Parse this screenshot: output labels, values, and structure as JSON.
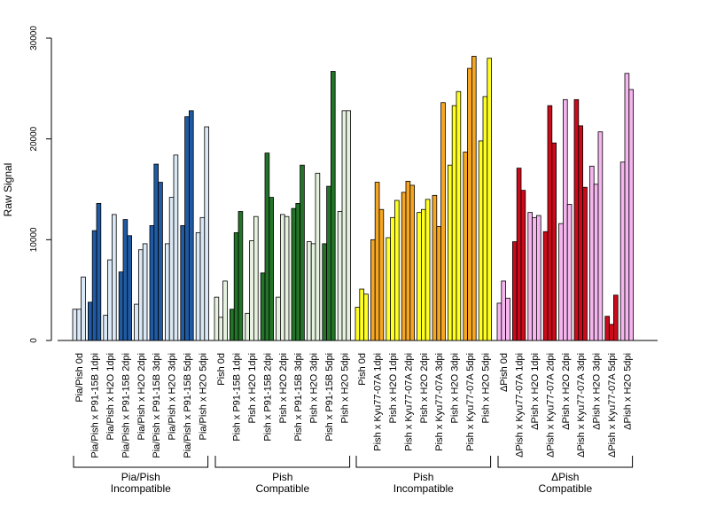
{
  "chart_data": {
    "type": "bar",
    "ylabel": "Raw Signal",
    "xlabel": "",
    "ylim": [
      0,
      30000
    ],
    "yticks": [
      0,
      10000,
      20000,
      30000
    ],
    "grid": false,
    "legend": "none",
    "categories": [
      {
        "label": "Pia/Pish 0d",
        "values": [
          3100,
          3100,
          6300
        ],
        "color": "#dbe8f5"
      },
      {
        "label": "Pia/Pish x P91-15B 1dpi",
        "values": [
          3800,
          10900,
          13600
        ],
        "color": "#1f5aa3"
      },
      {
        "label": "Pia/Pish x H2O 1dpi",
        "values": [
          2500,
          8000,
          12500
        ],
        "color": "#dbe8f5"
      },
      {
        "label": "Pia/Pish x P91-15B 2dpi",
        "values": [
          6800,
          12000,
          10400
        ],
        "color": "#1f5aa3"
      },
      {
        "label": "Pia/Pish x H2O 2dpi",
        "values": [
          3600,
          9000,
          9600
        ],
        "color": "#dbe8f5"
      },
      {
        "label": "Pia/Pish x P91-15B 3dpi",
        "values": [
          11400,
          17500,
          15700
        ],
        "color": "#1f5aa3"
      },
      {
        "label": "Pia/Pish x H2O 3dpi",
        "values": [
          9600,
          14200,
          18400
        ],
        "color": "#dbe8f5"
      },
      {
        "label": "Pia/Pish x P91-15B 5dpi",
        "values": [
          11400,
          22200,
          22800
        ],
        "color": "#1f5aa3"
      },
      {
        "label": "Pia/Pish x H2O 5dpi",
        "values": [
          10700,
          12200,
          21200
        ],
        "color": "#dbe8f5"
      },
      {
        "label": "Pish 0d",
        "values": [
          4300,
          2300,
          5900
        ],
        "color": "#e6f2df"
      },
      {
        "label": "Pish x P91-15B 1dpi",
        "values": [
          3100,
          10700,
          12800
        ],
        "color": "#237329"
      },
      {
        "label": "Pish x H2O 1dpi",
        "values": [
          2700,
          9900,
          12300
        ],
        "color": "#e6f2df"
      },
      {
        "label": "Pish x P91-15B 2dpi",
        "values": [
          6700,
          18600,
          14200
        ],
        "color": "#237329"
      },
      {
        "label": "Pish x H2O 2dpi",
        "values": [
          4300,
          12500,
          12300
        ],
        "color": "#e6f2df"
      },
      {
        "label": "Pish x P91-15B 3dpi",
        "values": [
          13100,
          13600,
          17400
        ],
        "color": "#237329"
      },
      {
        "label": "Pish x H2O 3dpi",
        "values": [
          9800,
          9600,
          16600
        ],
        "color": "#e6f2df"
      },
      {
        "label": "Pish x P91-15B 5dpi",
        "values": [
          9600,
          15300,
          26700
        ],
        "color": "#237329"
      },
      {
        "label": "Pish x H2O 5dpi",
        "values": [
          12800,
          22800,
          22800
        ],
        "color": "#e6f2df"
      },
      {
        "label": "Pish 0d",
        "values": [
          3300,
          5100,
          4600
        ],
        "color": "#ffff22"
      },
      {
        "label": "Pish x Kyu77-07A 1dpi",
        "values": [
          10000,
          15700,
          13000
        ],
        "color": "#f5a623"
      },
      {
        "label": "Pish x H2O 1dpi",
        "values": [
          10200,
          12200,
          13900
        ],
        "color": "#ffff22"
      },
      {
        "label": "Pish x Kyu77-07A 2dpi",
        "values": [
          14700,
          15800,
          15400
        ],
        "color": "#f5a623"
      },
      {
        "label": "Pish x H2O 2dpi",
        "values": [
          12700,
          13000,
          14000
        ],
        "color": "#ffff22"
      },
      {
        "label": "Pish x Kyu77-07A 3dpi",
        "values": [
          14400,
          11300,
          23600
        ],
        "color": "#f5a623"
      },
      {
        "label": "Pish x H2O 3dpi",
        "values": [
          17400,
          23300,
          24700
        ],
        "color": "#ffff22"
      },
      {
        "label": "Pish x Kyu77-07A 5dpi",
        "values": [
          18700,
          27000,
          28200
        ],
        "color": "#f5a623"
      },
      {
        "label": "Pish x H2O 5dpi",
        "values": [
          19800,
          24200,
          28000
        ],
        "color": "#ffff22"
      },
      {
        "label": "ΔPish 0d",
        "values": [
          3700,
          5900,
          4200
        ],
        "color": "#f5b5ee"
      },
      {
        "label": "ΔPish x Kyu77-07A 1dpi",
        "values": [
          9800,
          17100,
          14900
        ],
        "color": "#cc0a1a"
      },
      {
        "label": "ΔPish x H2O 1dpi",
        "values": [
          12700,
          12200,
          12400
        ],
        "color": "#f5b5ee"
      },
      {
        "label": "ΔPish x Kyu77-07A 2dpi",
        "values": [
          10800,
          23300,
          19600
        ],
        "color": "#cc0a1a"
      },
      {
        "label": "ΔPish x H2O 2dpi",
        "values": [
          11600,
          23900,
          13500
        ],
        "color": "#f5b5ee"
      },
      {
        "label": "ΔPish x Kyu77-07A 3dpi",
        "values": [
          23900,
          21300,
          15200
        ],
        "color": "#cc0a1a"
      },
      {
        "label": "ΔPish x H2O 3dpi",
        "values": [
          17300,
          15500,
          20700
        ],
        "color": "#f5b5ee"
      },
      {
        "label": "ΔPish x Kyu77-07A 5dpi",
        "values": [
          2400,
          1600,
          4500
        ],
        "color": "#cc0a1a"
      },
      {
        "label": "ΔPish x H2O 5dpi",
        "values": [
          17700,
          26500,
          24900
        ],
        "color": "#f5b5ee"
      }
    ],
    "groups": [
      {
        "line1": "Pia/Pish",
        "line2": "Incompatible",
        "count": 9
      },
      {
        "line1": "Pish",
        "line2": "Compatible",
        "count": 9
      },
      {
        "line1": "Pish",
        "line2": "Incompatible",
        "count": 9
      },
      {
        "line1": "ΔPish",
        "line2": "Compatible",
        "count": 9
      }
    ]
  }
}
